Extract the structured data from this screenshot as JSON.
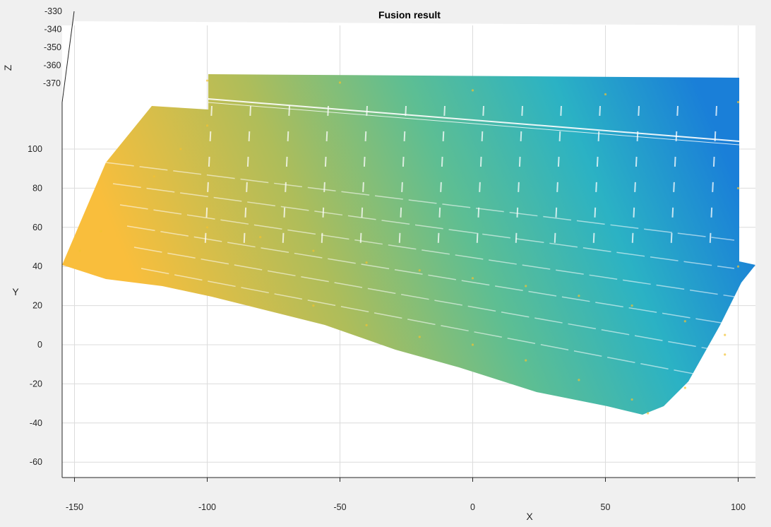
{
  "chart_data": {
    "type": "scatter",
    "title": "Fusion result",
    "xlabel": "X",
    "ylabel": "Y",
    "zlabel": "Z",
    "x_ticks": [
      -150,
      -100,
      -50,
      0,
      50,
      100
    ],
    "y_ticks": [
      -60,
      -40,
      -20,
      0,
      20,
      40,
      60,
      80,
      100
    ],
    "z_ticks": [
      -330,
      -340,
      -350,
      -360,
      -370
    ],
    "xlim": [
      -155,
      107
    ],
    "ylim": [
      -67,
      117
    ],
    "grid": true,
    "colormap": [
      "#f9be3c",
      "#aebd5a",
      "#5dbe93",
      "#2bb2c4",
      "#1a7fd8"
    ],
    "series": [
      {
        "points_xy_sample": [
          [
            -155,
            40
          ],
          [
            -148,
            48
          ],
          [
            -140,
            58
          ],
          [
            -130,
            72
          ],
          [
            -120,
            86
          ],
          [
            -110,
            100
          ],
          [
            -100,
            112
          ],
          [
            -100,
            60
          ],
          [
            -80,
            55
          ],
          [
            -60,
            48
          ],
          [
            -40,
            42
          ],
          [
            -20,
            38
          ],
          [
            0,
            34
          ],
          [
            20,
            30
          ],
          [
            40,
            25
          ],
          [
            60,
            20
          ],
          [
            80,
            12
          ],
          [
            95,
            5
          ],
          [
            100,
            40
          ],
          [
            -60,
            20
          ],
          [
            -40,
            10
          ],
          [
            -20,
            4
          ],
          [
            0,
            0
          ],
          [
            20,
            -8
          ],
          [
            40,
            -18
          ],
          [
            60,
            -28
          ],
          [
            66,
            -35
          ],
          [
            80,
            -22
          ],
          [
            95,
            -5
          ],
          [
            -100,
            135
          ],
          [
            -50,
            134
          ],
          [
            0,
            130
          ],
          [
            50,
            128
          ],
          [
            100,
            124
          ],
          [
            100,
            80
          ]
        ]
      }
    ]
  }
}
